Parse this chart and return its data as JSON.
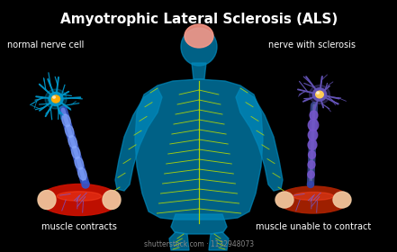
{
  "title": "Amyotrophic Lateral Sclerosis (ALS)",
  "title_fontsize": 11,
  "title_color": "#ffffff",
  "background_color": "#000000",
  "label_normal_nerve": "normal nerve cell",
  "label_nerve_sclerosis": "nerve with sclerosis",
  "label_muscle_contracts": "muscle contracts",
  "label_muscle_unable": "muscle unable to contract",
  "label_color": "#ffffff",
  "label_fontsize": 7.0,
  "body_color": "#0088bb",
  "nerve_line_color": "#bbdd00",
  "neuron_body_normal": "#0099cc",
  "neuron_nucleus_normal": "#ffaa00",
  "neuron_body_sclerosis": "#6655bb",
  "neuron_nucleus_sclerosis": "#ffcc55",
  "axon_normal_color": "#4466ee",
  "axon_sclerosis_color": "#4455aa",
  "axon_lump_color": "#7755cc",
  "muscle_normal_color": "#cc1100",
  "muscle_sclerosis_color": "#aa2200",
  "muscle_tip_color": "#f0c8a0",
  "brain_color": "#ff9988",
  "shutterstock_text": "shutterstock.com · 1132948073",
  "shutterstock_color": "#888888",
  "shutterstock_fontsize": 5.5
}
